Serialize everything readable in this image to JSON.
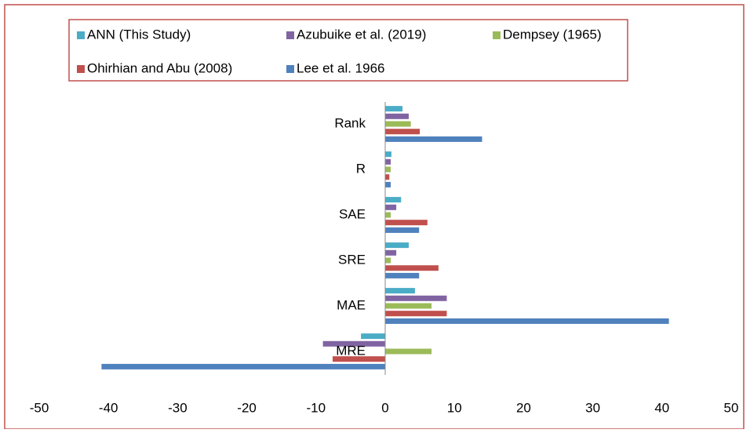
{
  "chart_data": {
    "type": "bar",
    "orientation": "horizontal",
    "categories": [
      "Rank",
      "R",
      "SAE",
      "SRE",
      "MAE",
      "MRE"
    ],
    "series": [
      {
        "name": "ANN (This Study)",
        "color": "#4bacc6",
        "values": [
          2.5,
          0.9,
          2.3,
          3.4,
          4.3,
          -3.5
        ]
      },
      {
        "name": "Azubuike et al. (2019)",
        "color": "#8064a2",
        "values": [
          3.4,
          0.8,
          1.6,
          1.6,
          8.9,
          -9
        ]
      },
      {
        "name": "Dempsey (1965)",
        "color": "#9bbb59",
        "values": [
          3.7,
          0.8,
          0.8,
          0.8,
          6.7,
          6.7
        ]
      },
      {
        "name": "Ohirhian and Abu (2008)",
        "color": "#c0504d",
        "values": [
          5,
          0.6,
          6.1,
          7.7,
          8.9,
          -7.6
        ]
      },
      {
        "name": "Lee et al. 1966",
        "color": "#4f81bd",
        "values": [
          14,
          0.8,
          4.9,
          4.9,
          41,
          -41
        ]
      }
    ],
    "xlim": [
      -50,
      50
    ],
    "xticks": [
      -50,
      -40,
      -30,
      -20,
      -10,
      0,
      10,
      20,
      30,
      40,
      50
    ],
    "legend": "top"
  }
}
